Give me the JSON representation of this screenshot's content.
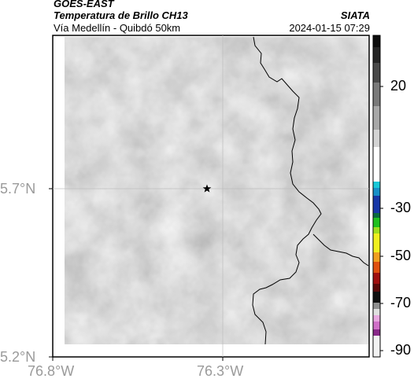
{
  "header": {
    "agency": "GOES-EAST",
    "product": "Temperatura de Brillo CH13",
    "region": "Vía Medellín - Quibdó 50km",
    "org": "SIATA",
    "timestamp": "2024-01-15 07:29"
  },
  "map": {
    "lat_ticks": [
      "5.7°N",
      "5.2°N"
    ],
    "lon_ticks": [
      "76.8°W",
      "76.3°W"
    ],
    "marker": "star-icon"
  },
  "colorbar": {
    "labels": [
      "20",
      "-30",
      "-50",
      "-70",
      "-90"
    ],
    "colors": [
      "#0a0a0a",
      "#404040",
      "#808080",
      "#c8c8c8",
      "#ffffff",
      "#18c8d8",
      "#1838a8",
      "#20c020",
      "#f0f020",
      "#e05010",
      "#a01010",
      "#101010",
      "#e0e0e0",
      "#d070c8",
      "#8a2a8a"
    ]
  }
}
